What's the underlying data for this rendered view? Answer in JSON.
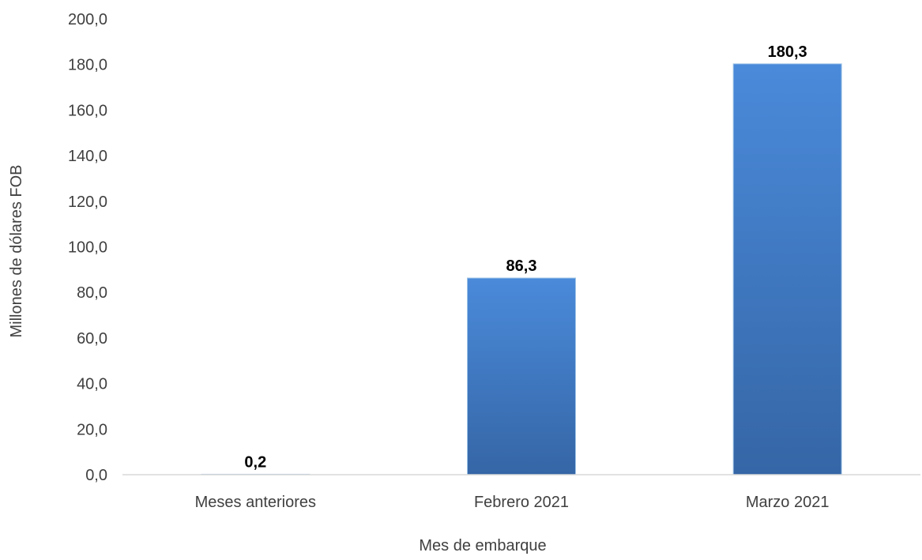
{
  "chart_data": {
    "type": "bar",
    "categories": [
      "Meses anteriores",
      "Febrero 2021",
      "Marzo 2021"
    ],
    "values": [
      0.2,
      86.3,
      180.3
    ],
    "data_labels": [
      "0,2",
      "86,3",
      "180,3"
    ],
    "title": "",
    "xlabel": "Mes de embarque",
    "ylabel": "Millones de dólares FOB",
    "ylim": [
      0,
      200
    ],
    "y_ticks": [
      "0,0",
      "20,0",
      "40,0",
      "60,0",
      "80,0",
      "100,0",
      "120,0",
      "140,0",
      "160,0",
      "180,0",
      "200,0"
    ],
    "grid": false,
    "legend": "none",
    "colors": {
      "bar_top": "#4a8ada",
      "bar_bottom": "#3566a6",
      "axis": "#d9d9d9"
    }
  }
}
